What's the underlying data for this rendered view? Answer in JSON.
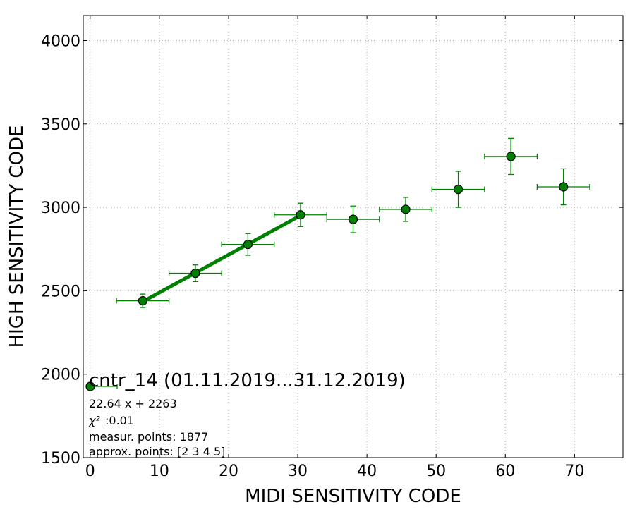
{
  "chart_data": {
    "type": "scatter",
    "xlabel": "MIDI SENSITIVITY CODE",
    "ylabel": "HIGH SENSITIVITY CODE",
    "xlim": [
      -1,
      77
    ],
    "ylim": [
      1500,
      4150
    ],
    "xticks": [
      "0",
      "10",
      "20",
      "30",
      "40",
      "50",
      "60",
      "70"
    ],
    "yticks": [
      "1500",
      "2000",
      "2500",
      "3000",
      "3500",
      "4000"
    ],
    "grid": true,
    "color": "#008000",
    "points": [
      {
        "x": 7.6,
        "y": 2440,
        "xerr": 3.8,
        "yerr": 40
      },
      {
        "x": 15.2,
        "y": 2605,
        "xerr": 3.8,
        "yerr": 50
      },
      {
        "x": 22.8,
        "y": 2778,
        "xerr": 3.8,
        "yerr": 65
      },
      {
        "x": 30.4,
        "y": 2955,
        "xerr": 3.8,
        "yerr": 70
      },
      {
        "x": 38.0,
        "y": 2928,
        "xerr": 3.8,
        "yerr": 80
      },
      {
        "x": 45.6,
        "y": 2988,
        "xerr": 3.8,
        "yerr": 72
      },
      {
        "x": 53.2,
        "y": 3108,
        "xerr": 3.8,
        "yerr": 108
      },
      {
        "x": 60.8,
        "y": 3305,
        "xerr": 3.8,
        "yerr": 108
      },
      {
        "x": 68.4,
        "y": 3123,
        "xerr": 3.8,
        "yerr": 108
      }
    ],
    "fit": {
      "slope": 22.64,
      "intercept": 2263,
      "x_range": [
        7.6,
        30.4
      ]
    },
    "legend": {
      "position": "lower-left",
      "title": "cntr_14 (01.11.2019...31.12.2019)",
      "lines": [
        "22.64 x + 2263",
        ":0.01",
        "measur. points: 1877",
        "approx. points: [2 3 4 5]"
      ],
      "chi_symbol": "χ²"
    }
  }
}
